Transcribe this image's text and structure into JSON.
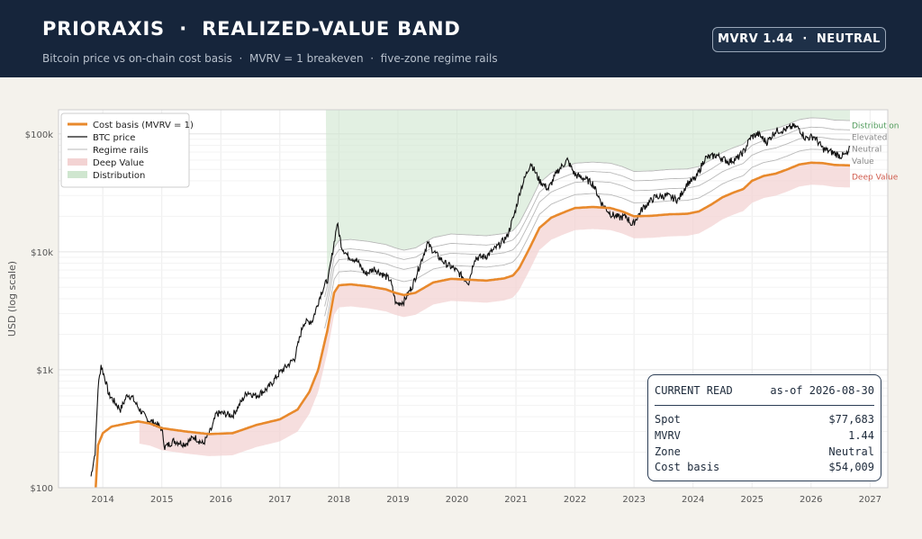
{
  "header": {
    "title": "PRIORAXIS  ·  REALIZED-VALUE BAND",
    "subtitle": "Bitcoin price vs on-chain cost basis  ·  MVRV = 1 breakeven  ·  five-zone regime rails",
    "badge": "MVRV 1.44  ·  NEUTRAL"
  },
  "colors": {
    "header_bg": "#16253b",
    "cost_basis": "#e8892c",
    "btc_price": "#111111",
    "regime_rails": "#b9b9b9",
    "deep_value": "#f3d3d3",
    "distribution": "#cfe6cf",
    "label_distribution": "#4f9a5a",
    "label_deep_value": "#d05c4e"
  },
  "readout": {
    "title": "CURRENT READ",
    "asof": "as-of 2026-08-30",
    "rows": [
      {
        "key": "Spot",
        "value": "$77,683"
      },
      {
        "key": "MVRV",
        "value": "1.44"
      },
      {
        "key": "Zone",
        "value": "Neutral"
      },
      {
        "key": "Cost basis",
        "value": "$54,009"
      }
    ]
  },
  "chart_data": {
    "type": "line",
    "ylabel": "USD (log scale)",
    "yscale": "log",
    "ylim": [
      100,
      160000
    ],
    "xlim": [
      2013.25,
      2027.3
    ],
    "grid": true,
    "legend_position": "top-left",
    "x_ticks": [
      "2014",
      "2015",
      "2016",
      "2017",
      "2018",
      "2019",
      "2020",
      "2021",
      "2022",
      "2023",
      "2024",
      "2025",
      "2026",
      "2027"
    ],
    "y_ticks": [
      {
        "value": 100,
        "label": "$100"
      },
      {
        "value": 1000,
        "label": "$1k"
      },
      {
        "value": 10000,
        "label": "$10k"
      },
      {
        "value": 100000,
        "label": "$100k"
      }
    ],
    "legend": [
      "Cost basis (MVRV = 1)",
      "BTC price",
      "Regime rails",
      "Deep Value",
      "Distribution"
    ],
    "zone_labels": [
      {
        "label": "Distribution",
        "value": 120000
      },
      {
        "label": "Elevated",
        "value": 95000
      },
      {
        "label": "Neutral",
        "value": 76000
      },
      {
        "label": "Value",
        "value": 60000
      },
      {
        "label": "Deep Value",
        "value": 44000
      }
    ],
    "rail_multipliers": [
      1.3,
      1.65,
      2.0,
      2.4
    ],
    "deep_value_multiplier": 0.65,
    "distribution_multiplier": 2.4,
    "series": [
      {
        "name": "BTC price",
        "x": [
          2013.8,
          2013.87,
          2013.92,
          2013.97,
          2014.05,
          2014.1,
          2014.18,
          2014.3,
          2014.42,
          2014.5,
          2014.6,
          2014.75,
          2014.9,
          2015.0,
          2015.05,
          2015.2,
          2015.4,
          2015.55,
          2015.7,
          2015.85,
          2015.92,
          2016.0,
          2016.2,
          2016.45,
          2016.6,
          2016.8,
          2017.0,
          2017.1,
          2017.25,
          2017.4,
          2017.55,
          2017.7,
          2017.82,
          2017.92,
          2017.97,
          2018.05,
          2018.15,
          2018.3,
          2018.45,
          2018.6,
          2018.75,
          2018.87,
          2018.97,
          2019.1,
          2019.25,
          2019.4,
          2019.5,
          2019.65,
          2019.8,
          2019.95,
          2020.2,
          2020.3,
          2020.5,
          2020.7,
          2020.85,
          2020.97,
          2021.08,
          2021.25,
          2021.4,
          2021.55,
          2021.7,
          2021.87,
          2022.0,
          2022.15,
          2022.3,
          2022.45,
          2022.6,
          2022.75,
          2022.87,
          2022.97,
          2023.15,
          2023.35,
          2023.55,
          2023.75,
          2023.9,
          2024.05,
          2024.2,
          2024.4,
          2024.6,
          2024.75,
          2024.87,
          2024.97,
          2025.1,
          2025.25,
          2025.4,
          2025.55,
          2025.7,
          2025.8,
          2025.9,
          2026.05,
          2026.2,
          2026.35,
          2026.5,
          2026.62,
          2026.66
        ],
        "values": [
          125,
          200,
          700,
          1100,
          800,
          620,
          550,
          460,
          620,
          580,
          480,
          380,
          350,
          315,
          220,
          250,
          235,
          270,
          235,
          320,
          420,
          430,
          410,
          650,
          600,
          700,
          950,
          1050,
          1250,
          2500,
          2600,
          4500,
          6000,
          12000,
          17500,
          11000,
          9200,
          8500,
          6500,
          7200,
          6400,
          5800,
          3600,
          3800,
          5200,
          8500,
          11800,
          9500,
          8000,
          7200,
          5500,
          8800,
          9200,
          11200,
          13500,
          20500,
          34000,
          57000,
          40000,
          34000,
          48000,
          60000,
          45000,
          42000,
          38000,
          26000,
          21000,
          19500,
          20000,
          16800,
          23500,
          29000,
          30000,
          27500,
          38000,
          42000,
          62000,
          66000,
          58000,
          62000,
          72000,
          93000,
          100000,
          85000,
          106000,
          108000,
          116000,
          111000,
          92000,
          95000,
          75000,
          70000,
          65000,
          67000,
          77683
        ]
      },
      {
        "name": "Cost basis (MVRV = 1)",
        "x": [
          2013.88,
          2013.92,
          2014.0,
          2014.15,
          2014.4,
          2014.6,
          2014.8,
          2015.0,
          2015.4,
          2015.8,
          2016.2,
          2016.6,
          2017.0,
          2017.3,
          2017.5,
          2017.65,
          2017.8,
          2017.92,
          2018.0,
          2018.2,
          2018.5,
          2018.8,
          2018.95,
          2019.1,
          2019.3,
          2019.6,
          2019.9,
          2020.2,
          2020.5,
          2020.8,
          2020.95,
          2021.05,
          2021.2,
          2021.4,
          2021.6,
          2021.8,
          2022.0,
          2022.3,
          2022.6,
          2022.8,
          2023.0,
          2023.3,
          2023.6,
          2023.9,
          2024.1,
          2024.3,
          2024.5,
          2024.7,
          2024.85,
          2025.0,
          2025.2,
          2025.4,
          2025.6,
          2025.8,
          2026.0,
          2026.2,
          2026.4,
          2026.66
        ],
        "values": [
          100,
          230,
          290,
          330,
          350,
          365,
          350,
          320,
          300,
          285,
          290,
          340,
          380,
          460,
          650,
          1000,
          2100,
          4500,
          5200,
          5300,
          5100,
          4800,
          4500,
          4300,
          4500,
          5500,
          5900,
          5800,
          5700,
          5950,
          6300,
          7200,
          10000,
          16000,
          19500,
          21500,
          23500,
          24000,
          23500,
          22000,
          20000,
          20200,
          20800,
          21000,
          22000,
          25000,
          29000,
          32000,
          34000,
          40000,
          44000,
          46000,
          50000,
          55000,
          57000,
          56500,
          54500,
          54009
        ]
      }
    ]
  }
}
